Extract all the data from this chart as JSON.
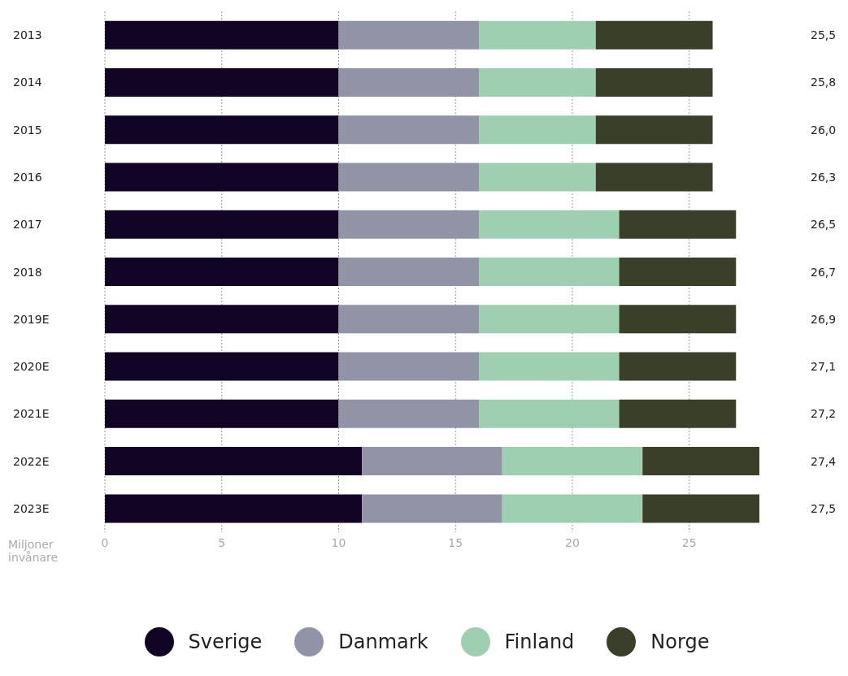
{
  "chart_data": {
    "type": "bar",
    "orientation": "horizontal",
    "stacked": true,
    "categories": [
      "2013",
      "2014",
      "2015",
      "2016",
      "2017",
      "2018",
      "2019E",
      "2020E",
      "2021E",
      "2022E",
      "2023E"
    ],
    "series": [
      {
        "name": "Sverige",
        "color": "#120425",
        "values": [
          10,
          10,
          10,
          10,
          10,
          10,
          10,
          10,
          10,
          11,
          11
        ]
      },
      {
        "name": "Danmark",
        "color": "#9194a7",
        "values": [
          6,
          6,
          6,
          6,
          6,
          6,
          6,
          6,
          6,
          6,
          6
        ]
      },
      {
        "name": "Finland",
        "color": "#9ecfb0",
        "values": [
          5,
          5,
          5,
          5,
          6,
          6,
          6,
          6,
          6,
          6,
          6
        ]
      },
      {
        "name": "Norge",
        "color": "#3a3f2a",
        "values": [
          5,
          5,
          5,
          5,
          5,
          5,
          5,
          5,
          5,
          5,
          5
        ]
      }
    ],
    "annotations": [
      "25,5",
      "25,8",
      "26,0",
      "26,3",
      "26,5",
      "26,7",
      "26,9",
      "27,1",
      "27,2",
      "27,4",
      "27,5"
    ],
    "xlabel": "Miljoner invånare",
    "xlim": [
      0,
      28
    ],
    "xticks": [
      0,
      5,
      10,
      15,
      20,
      25
    ],
    "grid": "x",
    "legend": "bottom"
  }
}
